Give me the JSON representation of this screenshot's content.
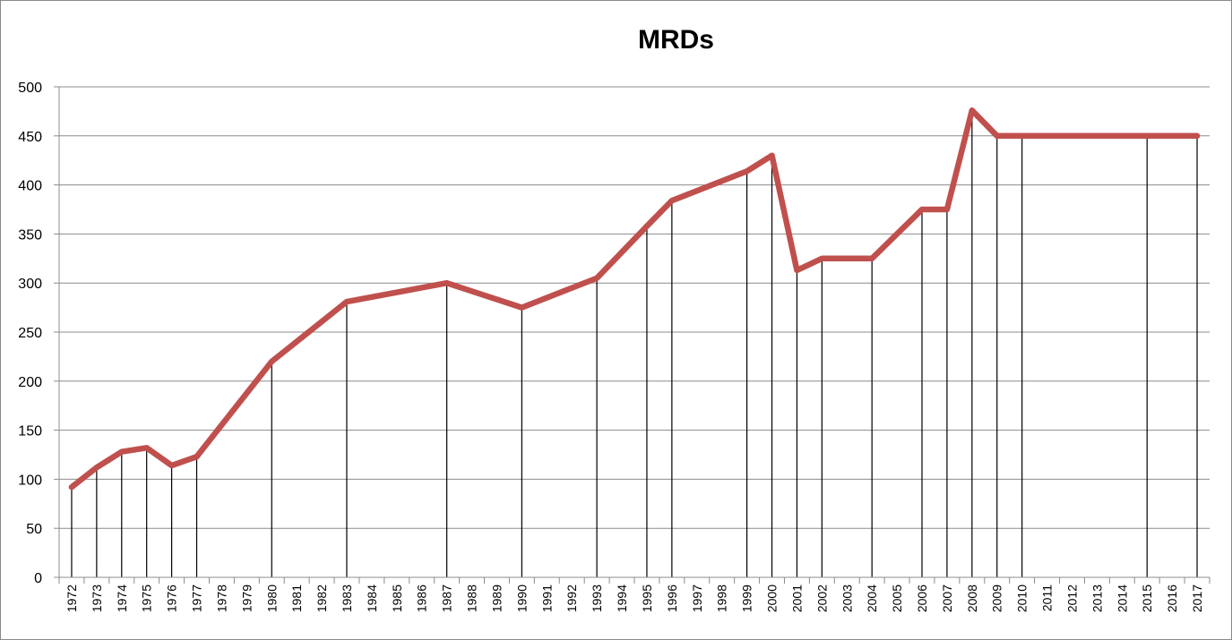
{
  "chart_data": {
    "type": "line",
    "title": "MRDs",
    "xlabel": "",
    "ylabel": "",
    "ylim": [
      0,
      500
    ],
    "yticks": [
      0,
      50,
      100,
      150,
      200,
      250,
      300,
      350,
      400,
      450,
      500
    ],
    "grid": true,
    "legend": "none",
    "series_color": "#c0504d",
    "categories": [
      "1972",
      "1973",
      "1974",
      "1975",
      "1976",
      "1977",
      "1978",
      "1979",
      "1980",
      "1981",
      "1982",
      "1983",
      "1984",
      "1985",
      "1986",
      "1987",
      "1988",
      "1989",
      "1990",
      "1991",
      "1992",
      "1993",
      "1994",
      "1995",
      "1996",
      "1997",
      "1998",
      "1999",
      "2000",
      "2001",
      "2002",
      "2003",
      "2004",
      "2005",
      "2006",
      "2007",
      "2008",
      "2009",
      "2010",
      "2011",
      "2012",
      "2013",
      "2014",
      "2015",
      "2016",
      "2017"
    ],
    "points": [
      {
        "x": "1972",
        "y": 92
      },
      {
        "x": "1973",
        "y": 112
      },
      {
        "x": "1974",
        "y": 128
      },
      {
        "x": "1975",
        "y": 132
      },
      {
        "x": "1976",
        "y": 114
      },
      {
        "x": "1977",
        "y": 123
      },
      {
        "x": "1980",
        "y": 220
      },
      {
        "x": "1983",
        "y": 281
      },
      {
        "x": "1987",
        "y": 300
      },
      {
        "x": "1990",
        "y": 275
      },
      {
        "x": "1993",
        "y": 305
      },
      {
        "x": "1995",
        "y": 358
      },
      {
        "x": "1996",
        "y": 384
      },
      {
        "x": "1999",
        "y": 414
      },
      {
        "x": "2000",
        "y": 430
      },
      {
        "x": "2001",
        "y": 313
      },
      {
        "x": "2002",
        "y": 325
      },
      {
        "x": "2004",
        "y": 325
      },
      {
        "x": "2006",
        "y": 375
      },
      {
        "x": "2007",
        "y": 375
      },
      {
        "x": "2008",
        "y": 476
      },
      {
        "x": "2009",
        "y": 450
      },
      {
        "x": "2010",
        "y": 450
      },
      {
        "x": "2015",
        "y": 450
      },
      {
        "x": "2017",
        "y": 450
      }
    ]
  }
}
